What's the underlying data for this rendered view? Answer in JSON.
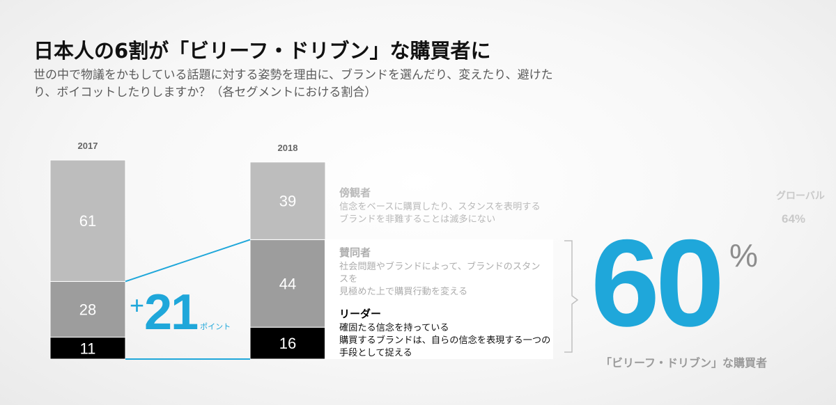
{
  "header": {
    "title": "日本人の6割が「ビリーフ・ドリブン」な購買者に",
    "subtitle": "世の中で物議をかもしている話題に対する姿勢を理由に、ブランドを選んだり、変えたり、避けたり、ボイコットしたりしますか？（各セグメントにおける割合）"
  },
  "chart_data": {
    "type": "bar",
    "stacked": true,
    "categories": [
      "2017",
      "2018"
    ],
    "series": [
      {
        "name": "リーダー",
        "values": [
          11,
          16
        ],
        "color": "#000000"
      },
      {
        "name": "賛同者",
        "values": [
          28,
          44
        ],
        "color": "#9d9d9d"
      },
      {
        "name": "傍観者",
        "values": [
          61,
          39
        ],
        "color": "#bdbdbd"
      }
    ],
    "ylim": [
      0,
      100
    ],
    "grid": false,
    "legend": "right"
  },
  "segments": {
    "bystander": {
      "name": "傍観者",
      "desc": "信念をベースに購買したり、スタンスを表明する\nブランドを非難することは滅多にない"
    },
    "supporter": {
      "name": "賛同者",
      "desc": "社会問題やブランドによって、ブランドのスタンスを\n見極めた上で購買行動を変える"
    },
    "leader": {
      "name": "リーダー",
      "desc": "確固たる信念を持っている\n購買するブランドは、自らの信念を表現する一つの\n手段として捉える"
    }
  },
  "change": {
    "sign": "+",
    "value": "21",
    "unit": "ポイント",
    "color": "#1fa7da"
  },
  "highlight": {
    "value": "60",
    "percent_sign": "%",
    "caption": "「ビリーフ・ドリブン」な購買者",
    "color": "#1fa7da"
  },
  "global": {
    "label": "グローバル",
    "value": "64%"
  }
}
